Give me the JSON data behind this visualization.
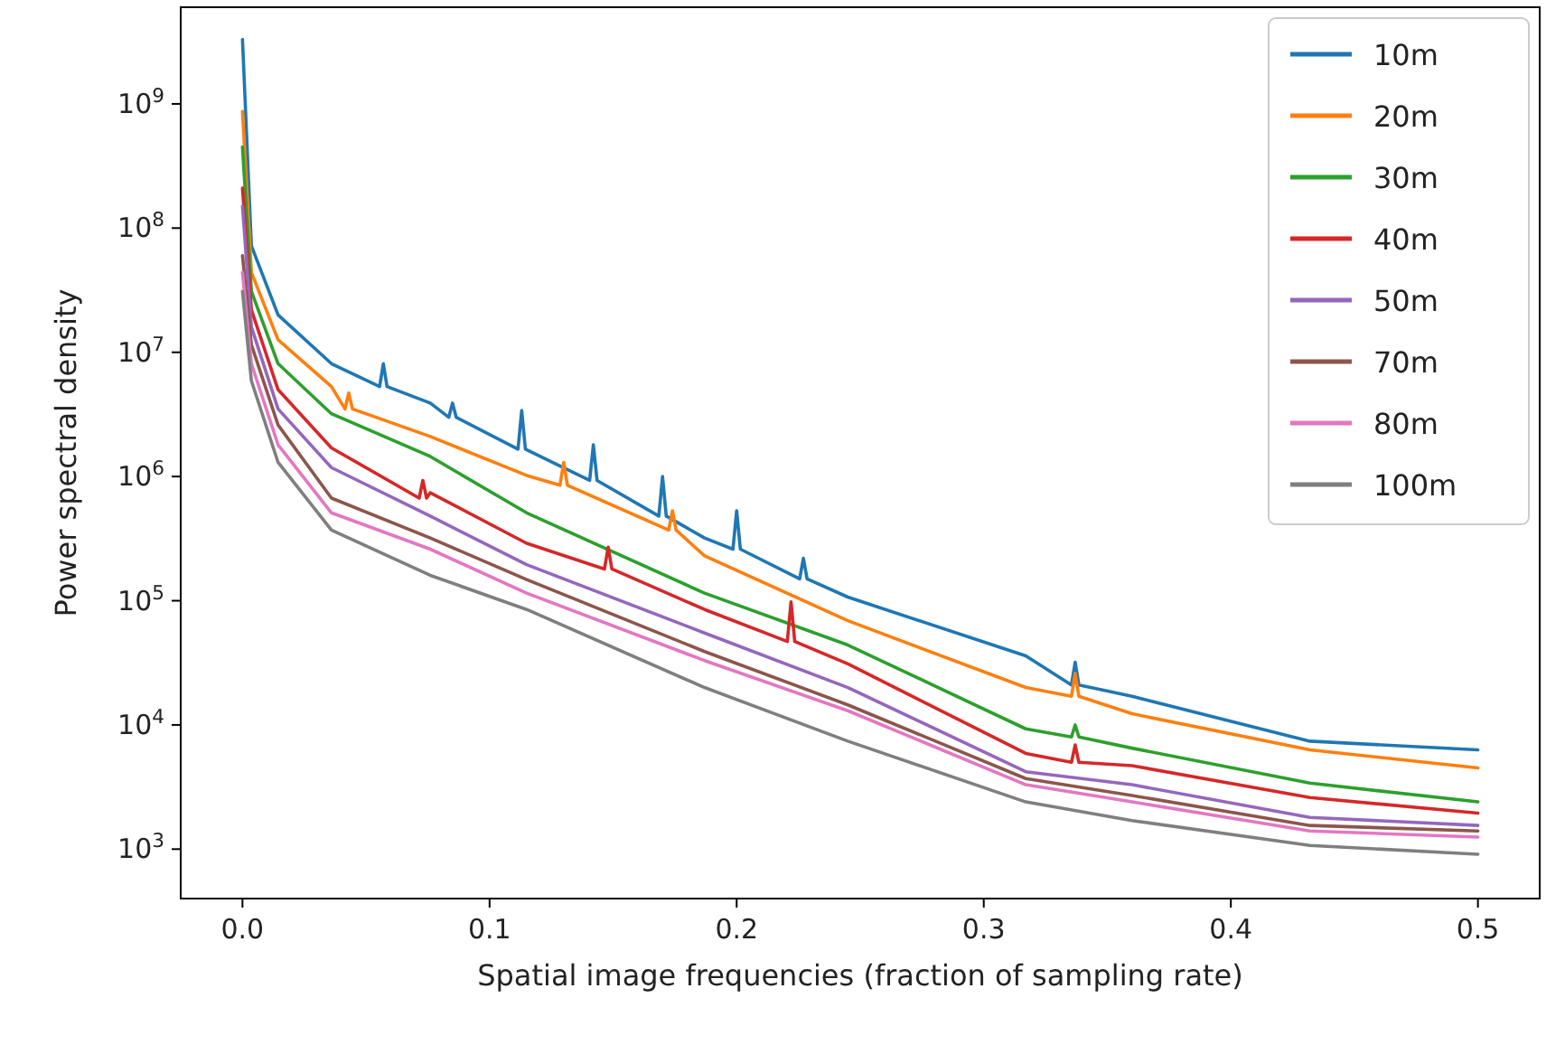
{
  "chart_data": {
    "type": "line",
    "xlabel": "Spatial image frequencies (fraction of sampling rate)",
    "ylabel": "Power spectral density",
    "log": "y",
    "legend": "top right",
    "grid": false,
    "line_style": "solid",
    "marker": "none",
    "xlim": [
      -0.025,
      0.525
    ],
    "xticks": [
      {
        "value": 0,
        "label": "0.0"
      },
      0.1,
      0.2,
      0.3,
      0.4,
      0.5
    ],
    "ylim": [
      400,
      6000000000
    ],
    "yticks": [
      {
        "value": 1000,
        "label": "10$^{3}$"
      },
      {
        "value": 10000,
        "label": "10$^{4}$"
      },
      {
        "value": 100000,
        "label": "10$^{5}$"
      },
      {
        "value": 1000000,
        "label": "10$^{6}$"
      },
      {
        "value": 10000000,
        "label": "10$^{7}$"
      },
      {
        "value": 100000000,
        "label": "10$^{8}$"
      },
      {
        "value": 1000000000,
        "label": "10$^{9}$"
      }
    ],
    "series": [
      {
        "name": "10m",
        "color": "#1f77b4",
        "x": [
          0,
          0.0036,
          0.0144,
          0.036,
          0.0555,
          0.057,
          0.0585,
          0.076,
          0.0835,
          0.085,
          0.0865,
          0.1115,
          0.113,
          0.1145,
          0.1405,
          0.142,
          0.1435,
          0.1685,
          0.17,
          0.1715,
          0.187,
          0.1985,
          0.2,
          0.2015,
          0.2255,
          0.227,
          0.2285,
          0.245,
          0.317,
          0.3355,
          0.337,
          0.3385,
          0.36,
          0.432,
          0.5
        ],
        "values": [
          3300000000,
          72000000,
          20000000,
          8100000,
          5300000,
          8100000,
          5300000,
          3900000,
          3000000,
          3900000,
          3000000,
          1660000,
          3400000,
          1660000,
          930000,
          1800000,
          930000,
          480000,
          1000000,
          480000,
          320000,
          260000,
          530000,
          260000,
          150000,
          220000,
          150000,
          107000,
          36000,
          21000,
          32000,
          21000,
          17000,
          7400,
          6300
        ]
      },
      {
        "name": "20m",
        "color": "#ff7f0e",
        "x": [
          0,
          0.0036,
          0.0144,
          0.036,
          0.0415,
          0.043,
          0.0445,
          0.076,
          0.115,
          0.1285,
          0.13,
          0.1315,
          0.1725,
          0.174,
          0.1755,
          0.187,
          0.245,
          0.317,
          0.3355,
          0.337,
          0.3385,
          0.36,
          0.432,
          0.5
        ],
        "values": [
          870000000,
          44000000,
          12600000,
          5300000,
          3500000,
          4700000,
          3500000,
          2100000,
          1020000,
          850000,
          1300000,
          850000,
          370000,
          530000,
          370000,
          230000,
          69000,
          20000,
          17000,
          26000,
          17000,
          12300,
          6300,
          4500
        ]
      },
      {
        "name": "30m",
        "color": "#2ca02c",
        "x": [
          0,
          0.0036,
          0.0144,
          0.036,
          0.076,
          0.115,
          0.187,
          0.245,
          0.317,
          0.3355,
          0.337,
          0.3385,
          0.36,
          0.432,
          0.5
        ],
        "values": [
          450000000,
          31000000,
          8100000,
          3200000,
          1450000,
          510000,
          115000,
          44000,
          9300,
          8000,
          10000,
          8000,
          6500,
          3400,
          2400
        ]
      },
      {
        "name": "40m",
        "color": "#d62728",
        "x": [
          0,
          0.0036,
          0.0144,
          0.036,
          0.0715,
          0.073,
          0.0745,
          0.076,
          0.115,
          0.1465,
          0.148,
          0.1495,
          0.187,
          0.2205,
          0.222,
          0.2235,
          0.245,
          0.317,
          0.3355,
          0.337,
          0.3385,
          0.36,
          0.432,
          0.5
        ],
        "values": [
          210000000,
          22000000,
          5000000,
          1700000,
          670000,
          930000,
          670000,
          740000,
          290000,
          180000,
          270000,
          180000,
          85000,
          47000,
          98000,
          47000,
          31000,
          5900,
          5000,
          6900,
          5000,
          4700,
          2600,
          1950
        ]
      },
      {
        "name": "50m",
        "color": "#9467bd",
        "x": [
          0,
          0.0036,
          0.0144,
          0.036,
          0.076,
          0.115,
          0.187,
          0.245,
          0.317,
          0.36,
          0.432,
          0.5
        ],
        "values": [
          150000000,
          16000000,
          3500000,
          1180000,
          480000,
          195000,
          55000,
          20000,
          4200,
          3300,
          1800,
          1550
        ]
      },
      {
        "name": "70m",
        "color": "#8c564b",
        "x": [
          0,
          0.0036,
          0.0144,
          0.036,
          0.076,
          0.115,
          0.187,
          0.245,
          0.317,
          0.36,
          0.432,
          0.5
        ],
        "values": [
          60000000,
          11500000,
          2600000,
          670000,
          320000,
          148000,
          39000,
          14500,
          3700,
          2700,
          1550,
          1400
        ]
      },
      {
        "name": "80m",
        "color": "#e377c2",
        "x": [
          0,
          0.0036,
          0.0144,
          0.036,
          0.076,
          0.115,
          0.187,
          0.245,
          0.317,
          0.36,
          0.432,
          0.5
        ],
        "values": [
          44000000,
          8100000,
          1800000,
          510000,
          260000,
          115000,
          33000,
          13000,
          3300,
          2400,
          1400,
          1250
        ]
      },
      {
        "name": "100m",
        "color": "#7f7f7f",
        "x": [
          0,
          0.0036,
          0.0144,
          0.036,
          0.076,
          0.115,
          0.187,
          0.245,
          0.317,
          0.36,
          0.432,
          0.5
        ],
        "values": [
          31000000,
          5900000,
          1300000,
          370000,
          160000,
          85000,
          20000,
          7400,
          2400,
          1700,
          1070,
          910
        ]
      }
    ]
  }
}
